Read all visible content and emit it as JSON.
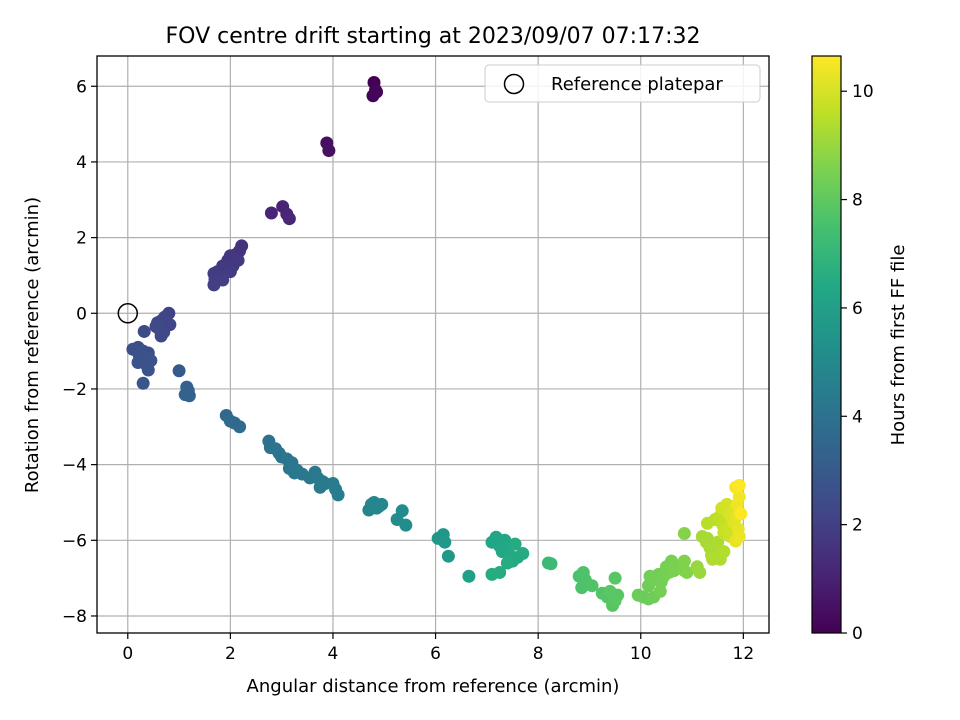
{
  "chart_data": {
    "type": "scatter",
    "title": "FOV centre drift starting at 2023/09/07 07:17:32",
    "xlabel": "Angular distance from reference (arcmin)",
    "ylabel": "Rotation from reference (arcmin)",
    "xlim": [
      -0.6,
      12.5
    ],
    "ylim": [
      -8.45,
      6.8
    ],
    "x_ticks": [
      0,
      2,
      4,
      6,
      8,
      10,
      12
    ],
    "y_ticks": [
      -8,
      -6,
      -4,
      -2,
      0,
      2,
      4,
      6
    ],
    "grid": true,
    "legend": {
      "placement": "top-right",
      "entries": [
        "Reference platepar"
      ]
    },
    "reference_point": {
      "x": 0,
      "y": 0
    },
    "colorbar": {
      "label": "Hours from first FF file",
      "colormap": "viridis",
      "range": [
        0,
        10.65
      ],
      "ticks": [
        0,
        2,
        4,
        6,
        8,
        10
      ]
    },
    "points": [
      {
        "x": 4.8,
        "y": 6.1,
        "c": 0.0
      },
      {
        "x": 4.83,
        "y": 5.9,
        "c": 0.05
      },
      {
        "x": 4.78,
        "y": 5.75,
        "c": 0.1
      },
      {
        "x": 4.85,
        "y": 5.85,
        "c": 0.15
      },
      {
        "x": 3.88,
        "y": 4.5,
        "c": 0.45
      },
      {
        "x": 3.92,
        "y": 4.3,
        "c": 0.5
      },
      {
        "x": 3.02,
        "y": 2.82,
        "c": 1.05
      },
      {
        "x": 3.1,
        "y": 2.62,
        "c": 1.1
      },
      {
        "x": 3.15,
        "y": 2.5,
        "c": 1.15
      },
      {
        "x": 2.8,
        "y": 2.65,
        "c": 1.1
      },
      {
        "x": 2.22,
        "y": 1.78,
        "c": 1.5
      },
      {
        "x": 2.18,
        "y": 1.65,
        "c": 1.55
      },
      {
        "x": 2.1,
        "y": 1.55,
        "c": 1.6
      },
      {
        "x": 2.0,
        "y": 1.52,
        "c": 1.65
      },
      {
        "x": 1.95,
        "y": 1.4,
        "c": 1.7
      },
      {
        "x": 2.15,
        "y": 1.4,
        "c": 1.72
      },
      {
        "x": 2.05,
        "y": 1.25,
        "c": 1.75
      },
      {
        "x": 1.85,
        "y": 1.25,
        "c": 1.78
      },
      {
        "x": 1.75,
        "y": 1.1,
        "c": 1.8
      },
      {
        "x": 1.9,
        "y": 1.1,
        "c": 1.82
      },
      {
        "x": 2.0,
        "y": 1.1,
        "c": 1.85
      },
      {
        "x": 1.68,
        "y": 1.05,
        "c": 1.88
      },
      {
        "x": 1.8,
        "y": 0.95,
        "c": 1.9
      },
      {
        "x": 1.7,
        "y": 0.9,
        "c": 1.92
      },
      {
        "x": 1.85,
        "y": 0.88,
        "c": 1.95
      },
      {
        "x": 1.68,
        "y": 0.75,
        "c": 1.98
      },
      {
        "x": 0.8,
        "y": 0.0,
        "c": 2.1
      },
      {
        "x": 0.72,
        "y": -0.1,
        "c": 2.15
      },
      {
        "x": 0.65,
        "y": -0.2,
        "c": 2.2
      },
      {
        "x": 0.82,
        "y": -0.3,
        "c": 2.22
      },
      {
        "x": 0.58,
        "y": -0.25,
        "c": 2.25
      },
      {
        "x": 0.6,
        "y": -0.4,
        "c": 2.28
      },
      {
        "x": 0.7,
        "y": -0.5,
        "c": 2.3
      },
      {
        "x": 0.65,
        "y": -0.6,
        "c": 2.32
      },
      {
        "x": 0.55,
        "y": -0.35,
        "c": 2.35
      },
      {
        "x": 0.32,
        "y": -0.48,
        "c": 2.4
      },
      {
        "x": 0.1,
        "y": -0.95,
        "c": 2.55
      },
      {
        "x": 0.2,
        "y": -0.9,
        "c": 2.58
      },
      {
        "x": 0.3,
        "y": -1.0,
        "c": 2.6
      },
      {
        "x": 0.4,
        "y": -1.05,
        "c": 2.62
      },
      {
        "x": 0.22,
        "y": -1.1,
        "c": 2.65
      },
      {
        "x": 0.35,
        "y": -1.2,
        "c": 2.68
      },
      {
        "x": 0.45,
        "y": -1.25,
        "c": 2.7
      },
      {
        "x": 0.2,
        "y": -1.3,
        "c": 2.72
      },
      {
        "x": 0.38,
        "y": -1.4,
        "c": 2.75
      },
      {
        "x": 0.4,
        "y": -1.5,
        "c": 2.78
      },
      {
        "x": 0.3,
        "y": -1.85,
        "c": 2.85
      },
      {
        "x": 1.0,
        "y": -1.52,
        "c": 3.0
      },
      {
        "x": 1.15,
        "y": -1.95,
        "c": 3.3
      },
      {
        "x": 1.18,
        "y": -2.05,
        "c": 3.32
      },
      {
        "x": 1.12,
        "y": -2.15,
        "c": 3.35
      },
      {
        "x": 1.2,
        "y": -2.18,
        "c": 3.37
      },
      {
        "x": 1.92,
        "y": -2.7,
        "c": 3.6
      },
      {
        "x": 2.0,
        "y": -2.85,
        "c": 3.65
      },
      {
        "x": 2.08,
        "y": -2.9,
        "c": 3.68
      },
      {
        "x": 2.18,
        "y": -3.0,
        "c": 3.72
      },
      {
        "x": 2.75,
        "y": -3.38,
        "c": 4.0
      },
      {
        "x": 2.78,
        "y": -3.55,
        "c": 4.02
      },
      {
        "x": 2.88,
        "y": -3.58,
        "c": 4.05
      },
      {
        "x": 2.95,
        "y": -3.7,
        "c": 4.08
      },
      {
        "x": 3.0,
        "y": -3.8,
        "c": 4.1
      },
      {
        "x": 3.1,
        "y": -3.85,
        "c": 4.12
      },
      {
        "x": 3.2,
        "y": -3.95,
        "c": 4.15
      },
      {
        "x": 3.15,
        "y": -4.1,
        "c": 4.18
      },
      {
        "x": 3.3,
        "y": -4.15,
        "c": 4.2
      },
      {
        "x": 3.4,
        "y": -4.25,
        "c": 4.22
      },
      {
        "x": 3.25,
        "y": -4.22,
        "c": 4.24
      },
      {
        "x": 3.55,
        "y": -4.35,
        "c": 4.26
      },
      {
        "x": 3.65,
        "y": -4.2,
        "c": 4.28
      },
      {
        "x": 3.7,
        "y": -4.35,
        "c": 4.3
      },
      {
        "x": 3.8,
        "y": -4.45,
        "c": 4.32
      },
      {
        "x": 3.75,
        "y": -4.6,
        "c": 4.34
      },
      {
        "x": 3.85,
        "y": -4.5,
        "c": 4.36
      },
      {
        "x": 4.0,
        "y": -4.5,
        "c": 4.4
      },
      {
        "x": 4.05,
        "y": -4.65,
        "c": 4.42
      },
      {
        "x": 4.1,
        "y": -4.8,
        "c": 4.45
      },
      {
        "x": 4.7,
        "y": -5.2,
        "c": 4.8
      },
      {
        "x": 4.75,
        "y": -5.05,
        "c": 4.82
      },
      {
        "x": 4.8,
        "y": -5.0,
        "c": 4.84
      },
      {
        "x": 4.9,
        "y": -5.1,
        "c": 4.86
      },
      {
        "x": 4.95,
        "y": -5.05,
        "c": 4.88
      },
      {
        "x": 4.85,
        "y": -5.15,
        "c": 4.9
      },
      {
        "x": 5.25,
        "y": -5.45,
        "c": 5.1
      },
      {
        "x": 5.35,
        "y": -5.22,
        "c": 5.12
      },
      {
        "x": 5.42,
        "y": -5.6,
        "c": 5.15
      },
      {
        "x": 6.05,
        "y": -5.95,
        "c": 5.6
      },
      {
        "x": 6.15,
        "y": -5.85,
        "c": 5.62
      },
      {
        "x": 6.18,
        "y": -6.05,
        "c": 5.64
      },
      {
        "x": 6.25,
        "y": -6.42,
        "c": 5.68
      },
      {
        "x": 6.65,
        "y": -6.95,
        "c": 6.0
      },
      {
        "x": 7.1,
        "y": -6.05,
        "c": 6.3
      },
      {
        "x": 7.18,
        "y": -5.92,
        "c": 6.32
      },
      {
        "x": 7.25,
        "y": -6.15,
        "c": 6.34
      },
      {
        "x": 7.35,
        "y": -6.0,
        "c": 6.36
      },
      {
        "x": 7.4,
        "y": -6.2,
        "c": 6.38
      },
      {
        "x": 7.3,
        "y": -6.3,
        "c": 6.4
      },
      {
        "x": 7.45,
        "y": -6.4,
        "c": 6.42
      },
      {
        "x": 7.5,
        "y": -6.55,
        "c": 6.44
      },
      {
        "x": 7.6,
        "y": -6.45,
        "c": 6.46
      },
      {
        "x": 7.55,
        "y": -6.1,
        "c": 6.48
      },
      {
        "x": 7.7,
        "y": -6.35,
        "c": 6.5
      },
      {
        "x": 7.4,
        "y": -6.6,
        "c": 6.52
      },
      {
        "x": 7.1,
        "y": -6.9,
        "c": 6.54
      },
      {
        "x": 7.25,
        "y": -6.85,
        "c": 6.56
      },
      {
        "x": 8.2,
        "y": -6.6,
        "c": 7.2
      },
      {
        "x": 8.25,
        "y": -6.62,
        "c": 7.22
      },
      {
        "x": 8.8,
        "y": -6.95,
        "c": 7.6
      },
      {
        "x": 8.88,
        "y": -6.85,
        "c": 7.62
      },
      {
        "x": 8.92,
        "y": -7.05,
        "c": 7.64
      },
      {
        "x": 8.85,
        "y": -7.25,
        "c": 7.66
      },
      {
        "x": 9.05,
        "y": -7.2,
        "c": 7.7
      },
      {
        "x": 9.25,
        "y": -7.4,
        "c": 7.74
      },
      {
        "x": 9.35,
        "y": -7.5,
        "c": 7.78
      },
      {
        "x": 9.45,
        "y": -7.72,
        "c": 7.82
      },
      {
        "x": 9.5,
        "y": -7.0,
        "c": 7.84
      },
      {
        "x": 9.55,
        "y": -7.45,
        "c": 7.86
      },
      {
        "x": 9.4,
        "y": -7.35,
        "c": 7.88
      },
      {
        "x": 9.5,
        "y": -7.6,
        "c": 7.9
      },
      {
        "x": 9.95,
        "y": -7.45,
        "c": 8.2
      },
      {
        "x": 10.05,
        "y": -7.5,
        "c": 8.22
      },
      {
        "x": 10.15,
        "y": -7.55,
        "c": 8.24
      },
      {
        "x": 10.25,
        "y": -7.5,
        "c": 8.26
      },
      {
        "x": 10.15,
        "y": -7.2,
        "c": 8.3
      },
      {
        "x": 10.25,
        "y": -7.05,
        "c": 8.32
      },
      {
        "x": 10.18,
        "y": -6.95,
        "c": 8.34
      },
      {
        "x": 10.35,
        "y": -6.9,
        "c": 8.36
      },
      {
        "x": 10.4,
        "y": -7.1,
        "c": 8.38
      },
      {
        "x": 10.38,
        "y": -7.35,
        "c": 8.4
      },
      {
        "x": 10.45,
        "y": -6.95,
        "c": 8.42
      },
      {
        "x": 10.55,
        "y": -6.85,
        "c": 8.44
      },
      {
        "x": 10.5,
        "y": -6.7,
        "c": 8.46
      },
      {
        "x": 10.6,
        "y": -6.55,
        "c": 8.48
      },
      {
        "x": 10.65,
        "y": -6.8,
        "c": 8.5
      },
      {
        "x": 10.75,
        "y": -6.7,
        "c": 8.52
      },
      {
        "x": 10.85,
        "y": -6.8,
        "c": 8.6
      },
      {
        "x": 10.85,
        "y": -6.55,
        "c": 8.62
      },
      {
        "x": 10.9,
        "y": -6.85,
        "c": 8.64
      },
      {
        "x": 10.85,
        "y": -5.82,
        "c": 8.7
      },
      {
        "x": 11.1,
        "y": -6.7,
        "c": 9.0
      },
      {
        "x": 11.15,
        "y": -6.85,
        "c": 9.02
      },
      {
        "x": 11.2,
        "y": -5.9,
        "c": 9.2
      },
      {
        "x": 11.28,
        "y": -6.05,
        "c": 9.22
      },
      {
        "x": 11.3,
        "y": -5.95,
        "c": 9.24
      },
      {
        "x": 11.35,
        "y": -6.2,
        "c": 9.26
      },
      {
        "x": 11.38,
        "y": -6.4,
        "c": 9.28
      },
      {
        "x": 11.45,
        "y": -6.3,
        "c": 9.3
      },
      {
        "x": 11.5,
        "y": -6.05,
        "c": 9.32
      },
      {
        "x": 11.4,
        "y": -6.5,
        "c": 9.34
      },
      {
        "x": 11.55,
        "y": -6.5,
        "c": 9.36
      },
      {
        "x": 11.62,
        "y": -6.3,
        "c": 9.4
      },
      {
        "x": 11.3,
        "y": -5.55,
        "c": 9.5
      },
      {
        "x": 11.45,
        "y": -5.45,
        "c": 9.55
      },
      {
        "x": 11.55,
        "y": -5.35,
        "c": 9.6
      },
      {
        "x": 11.6,
        "y": -5.6,
        "c": 9.65
      },
      {
        "x": 11.65,
        "y": -5.5,
        "c": 9.7
      },
      {
        "x": 11.62,
        "y": -5.8,
        "c": 9.75
      },
      {
        "x": 11.7,
        "y": -5.7,
        "c": 9.8
      },
      {
        "x": 11.75,
        "y": -5.9,
        "c": 9.85
      },
      {
        "x": 11.58,
        "y": -5.15,
        "c": 9.9
      },
      {
        "x": 11.68,
        "y": -5.05,
        "c": 9.95
      },
      {
        "x": 11.72,
        "y": -5.3,
        "c": 10.0
      },
      {
        "x": 11.78,
        "y": -5.4,
        "c": 10.05
      },
      {
        "x": 11.8,
        "y": -5.2,
        "c": 10.1
      },
      {
        "x": 11.82,
        "y": -5.55,
        "c": 10.15
      },
      {
        "x": 11.88,
        "y": -5.35,
        "c": 10.2
      },
      {
        "x": 11.9,
        "y": -5.7,
        "c": 10.25
      },
      {
        "x": 11.85,
        "y": -6.02,
        "c": 10.3
      },
      {
        "x": 11.92,
        "y": -5.9,
        "c": 10.35
      },
      {
        "x": 11.88,
        "y": -5.05,
        "c": 10.4
      },
      {
        "x": 11.92,
        "y": -4.85,
        "c": 10.45
      },
      {
        "x": 11.85,
        "y": -4.6,
        "c": 10.55
      },
      {
        "x": 11.92,
        "y": -4.55,
        "c": 10.6
      },
      {
        "x": 11.95,
        "y": -5.3,
        "c": 10.65
      }
    ]
  }
}
